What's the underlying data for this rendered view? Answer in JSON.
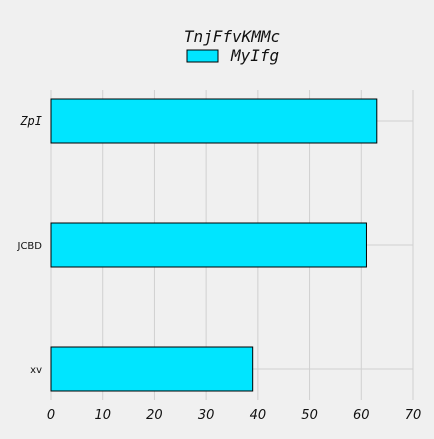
{
  "chart_data": {
    "type": "bar",
    "orientation": "horizontal",
    "categories": [
      "ZpI",
      "JCBD",
      "xv"
    ],
    "series": [
      {
        "name": "MyIfg",
        "values": [
          63,
          61,
          39
        ],
        "color": "#00e5ff"
      }
    ],
    "legend": {
      "title": "TnjFfvKMMc",
      "placement": "top-center"
    },
    "xlim": [
      0,
      70
    ],
    "x_ticks": [
      "0",
      "10",
      "20",
      "30",
      "40",
      "50",
      "60",
      "70"
    ],
    "grid": true,
    "colors": {
      "background": "#f0f0f0",
      "grid": "#d0d0d0",
      "bar_edge": "#000000"
    }
  }
}
